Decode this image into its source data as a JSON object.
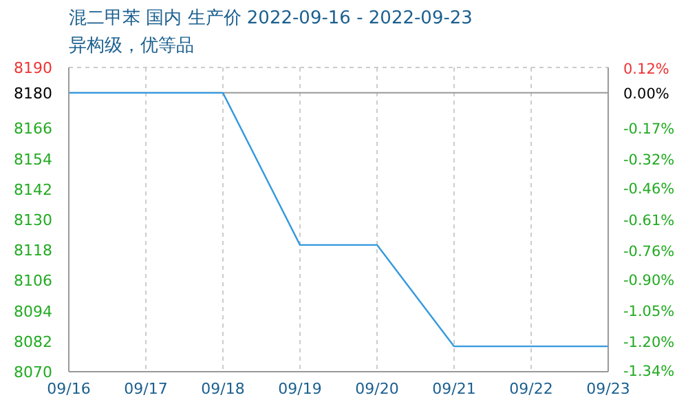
{
  "chart_data": {
    "type": "line",
    "title": "混二甲苯 国内 生产价 2022-09-16 - 2022-09-23",
    "subtitle": "异构级，优等品",
    "categories": [
      "09/16",
      "09/17",
      "09/18",
      "09/19",
      "09/20",
      "09/21",
      "09/22",
      "09/23"
    ],
    "series": [
      {
        "color": "#3399dd",
        "values": [
          8180,
          8180,
          8180,
          8120,
          8120,
          8080,
          8080,
          8080
        ]
      }
    ],
    "ylim": [
      8070,
      8190
    ],
    "yticks": [
      8070,
      8082,
      8094,
      8106,
      8118,
      8130,
      8142,
      8154,
      8166,
      8180,
      8190
    ],
    "y2lim": [
      -1.345,
      0.122
    ],
    "y2ticks": [
      {
        "value": -1.34,
        "label": "-1.34%"
      },
      {
        "value": -1.2,
        "label": "-1.20%"
      },
      {
        "value": -1.05,
        "label": "-1.05%"
      },
      {
        "value": -0.9,
        "label": "-0.90%"
      },
      {
        "value": -0.76,
        "label": "-0.76%"
      },
      {
        "value": -0.61,
        "label": "-0.61%"
      },
      {
        "value": -0.46,
        "label": "-0.46%"
      },
      {
        "value": -0.32,
        "label": "-0.32%"
      },
      {
        "value": -0.17,
        "label": "-0.17%"
      },
      {
        "value": 0,
        "label": "0.00%"
      },
      {
        "value": 0.12,
        "label": "0.12%"
      }
    ],
    "ref_lines": [
      {
        "axis": "y",
        "value": 8180,
        "color": "#999999"
      }
    ],
    "grid": true
  }
}
